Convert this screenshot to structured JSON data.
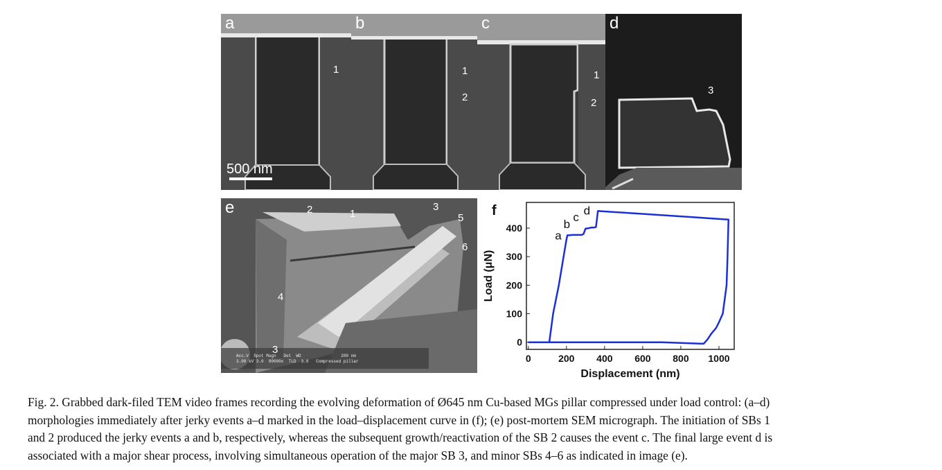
{
  "panels": {
    "a": {
      "label": "a",
      "annotations": [
        "1"
      ],
      "scalebar": "500 nm"
    },
    "b": {
      "label": "b",
      "annotations": [
        "1",
        "2"
      ]
    },
    "c": {
      "label": "c",
      "annotations": [
        "1",
        "2"
      ]
    },
    "d": {
      "label": "d",
      "annotations": [
        "3"
      ]
    },
    "e": {
      "label": "e",
      "annotations": [
        "2",
        "1",
        "3",
        "5",
        "6",
        "4",
        "3"
      ],
      "info_line1": "Acc.V  Spot Magn   Det  WD                200 nm",
      "info_line2": "3.00 kV 3.0  80000x  TLD  3.0   Compressed pillar"
    }
  },
  "chart_data": {
    "label": "f",
    "type": "line",
    "xlabel": "Displacement (nm)",
    "ylabel": "Load (μN)",
    "xlim": [
      -10,
      1080
    ],
    "ylim": [
      -25,
      490
    ],
    "xticks": [
      0,
      200,
      400,
      600,
      800,
      1000
    ],
    "yticks": [
      0,
      100,
      200,
      300,
      400
    ],
    "series": [
      {
        "color": "#1a2fd6",
        "x": [
          0,
          110,
          130,
          160,
          185,
          200,
          205,
          215,
          230,
          255,
          280,
          290,
          300,
          320,
          330,
          345,
          355,
          365,
          1050,
          1045,
          1040,
          1030,
          1020,
          1000,
          985,
          960,
          940,
          920,
          905,
          700,
          600,
          400,
          200,
          0
        ],
        "y": [
          0,
          0,
          100,
          200,
          300,
          360,
          375,
          375,
          376,
          376,
          376,
          380,
          398,
          400,
          402,
          402,
          404,
          460,
          430,
          300,
          200,
          150,
          100,
          70,
          50,
          30,
          10,
          -5,
          -5,
          0,
          0,
          0,
          0,
          0
        ]
      }
    ],
    "annotations": [
      {
        "text": "a",
        "x": 140,
        "y": 360
      },
      {
        "text": "b",
        "x": 185,
        "y": 400
      },
      {
        "text": "c",
        "x": 235,
        "y": 425
      },
      {
        "text": "d",
        "x": 290,
        "y": 448
      }
    ]
  },
  "caption": {
    "line1": "Fig. 2.  Grabbed dark-filed TEM video frames recording the evolving deformation of Ø645 nm Cu-based MGs pillar compressed under load control: (a–d)",
    "line2": "morphologies immediately after jerky events a–d marked in the load–displacement curve in (f); (e) post-mortem SEM micrograph. The initiation of SBs 1",
    "line3": "and 2 produced the jerky events a and b, respectively, whereas the subsequent growth/reactivation of the SB 2 causes the event c. The final large event d is",
    "line4": "associated with a major shear process, involving simultaneous operation of the major SB 3, and minor SBs 4–6 as indicated in image (e)."
  }
}
